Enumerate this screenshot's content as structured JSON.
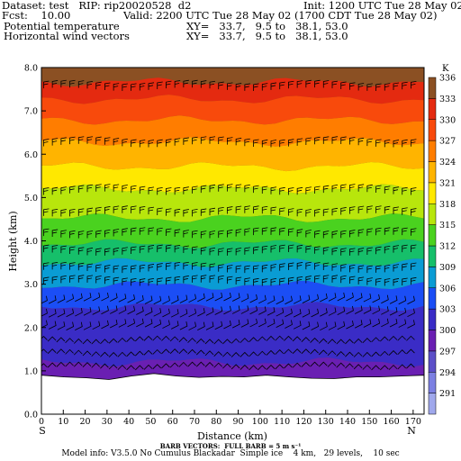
{
  "header": {
    "dataset": "Dataset: test   RIP: rip20020528  d2",
    "init": "Init: 1200 UTC Tue 28 May 02",
    "fcst": "Fcst:    10.00",
    "valid": "Valid: 2200 UTC Tue 28 May 02 (1700 CDT Tue 28 May 02)",
    "field1": "Potential temperature",
    "field1_xy": "XY=   33.7,   9.5 to   38.1, 53.0",
    "field2": "Horizontal wind vectors",
    "field2_xy": "XY=   33.7,   9.5 to   38.1, 53.0"
  },
  "footer": {
    "barb_note": "BARB VECTORS:  FULL BARB = 5 m s⁻¹",
    "model_info": "Model info: V3.5.0 No Cumulus Blackadar  Simple ice    4 km,   29 levels,    10 sec"
  },
  "chart_data": {
    "type": "heatmap",
    "xlabel": "Distance (km)",
    "ylabel": "Height (km)",
    "xlim": [
      0,
      175
    ],
    "ylim": [
      0,
      8
    ],
    "x_ticks": [
      0,
      10,
      20,
      30,
      40,
      50,
      60,
      70,
      80,
      90,
      100,
      110,
      120,
      130,
      140,
      150,
      160,
      170
    ],
    "y_ticks": [
      "0.0",
      "1.0",
      "2.0",
      "3.0",
      "4.0",
      "5.0",
      "6.0",
      "7.0",
      "8.0"
    ],
    "x_end_labels": {
      "left": "S",
      "right": "N"
    },
    "colorbar": {
      "unit": "K",
      "levels": [
        291,
        294,
        297,
        300,
        303,
        306,
        309,
        312,
        315,
        318,
        321,
        324,
        327,
        330,
        333,
        336
      ],
      "level_labels": [
        "291",
        "294",
        "297",
        "300",
        "303",
        "306",
        "309",
        "312",
        "315",
        "318",
        "321",
        "324",
        "327",
        "330",
        "333",
        "336"
      ],
      "colors": [
        "#a0a8ec",
        "#7c80e2",
        "#5c4fc8",
        "#6a1fb2",
        "#3a2cc6",
        "#1b4ef5",
        "#0a9cd4",
        "#16bf6a",
        "#4ad21f",
        "#b8e60c",
        "#ffe800",
        "#ffb400",
        "#ff7d00",
        "#f84a0c",
        "#e42a10",
        "#8b5023"
      ]
    },
    "terrain_height_km": [
      0.9,
      0.86,
      0.84,
      0.8,
      0.88,
      0.94,
      0.88,
      0.85,
      0.87,
      0.86,
      0.9,
      0.86,
      0.83,
      0.82,
      0.86,
      0.86,
      0.88,
      0.9
    ],
    "theta_at_heights": {
      "heights_km": [
        1.0,
        1.8,
        2.4,
        2.9,
        3.2,
        3.6,
        4.0,
        4.4,
        4.9,
        5.3,
        5.8,
        6.2,
        6.7,
        7.2,
        7.6,
        8.0
      ],
      "theta_K": [
        300,
        302,
        303,
        306,
        308,
        310,
        313,
        315,
        317,
        319,
        322,
        324,
        327,
        330,
        333,
        336
      ]
    },
    "wind_barb_rows_km": [
      1.1,
      1.4,
      1.7,
      2.0,
      2.3,
      2.6,
      3.0,
      3.3,
      3.7,
      4.1,
      4.6,
      5.1,
      6.2,
      7.5
    ]
  }
}
